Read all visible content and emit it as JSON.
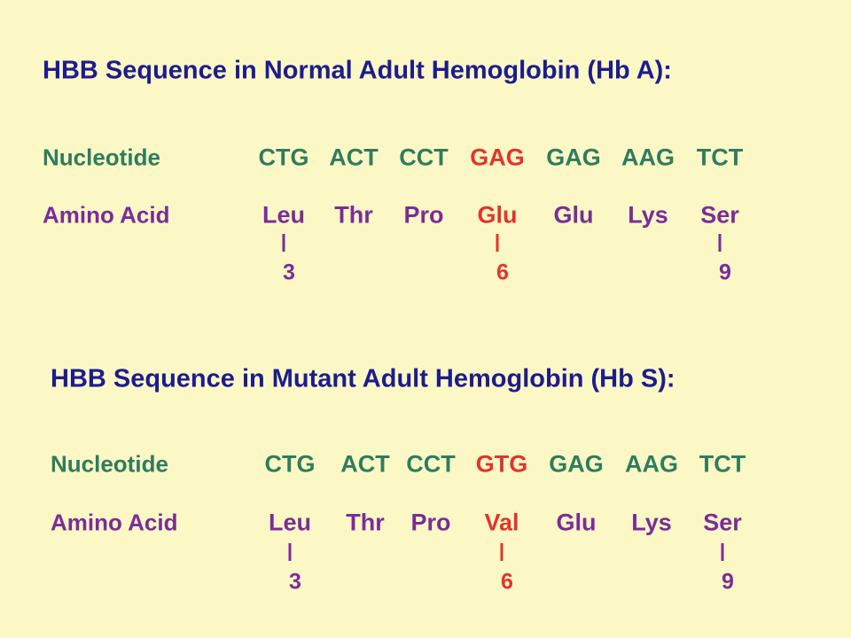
{
  "sections": [
    {
      "title": "HBB Sequence in Normal Adult Hemoglobin (Hb A):",
      "nucleotide_label": "Nucleotide",
      "amino_label": "Amino Acid",
      "codons": [
        "CTG",
        "ACT",
        "CCT",
        "GAG",
        "GAG",
        "AAG",
        "TCT"
      ],
      "amino_acids": [
        "Leu",
        "Thr",
        "Pro",
        "Glu",
        "Glu",
        "Lys",
        "Ser"
      ],
      "positions": [
        3,
        6,
        9
      ]
    },
    {
      "title": "HBB Sequence in Mutant Adult Hemoglobin (Hb S):",
      "nucleotide_label": "Nucleotide",
      "amino_label": "Amino Acid",
      "codons": [
        "CTG",
        "ACT",
        "CCT",
        "GTG",
        "GAG",
        "AAG",
        "TCT"
      ],
      "amino_acids": [
        "Leu",
        "Thr",
        "Pro",
        "Val",
        "Glu",
        "Lys",
        "Ser"
      ],
      "positions": [
        3,
        6,
        9
      ]
    }
  ]
}
